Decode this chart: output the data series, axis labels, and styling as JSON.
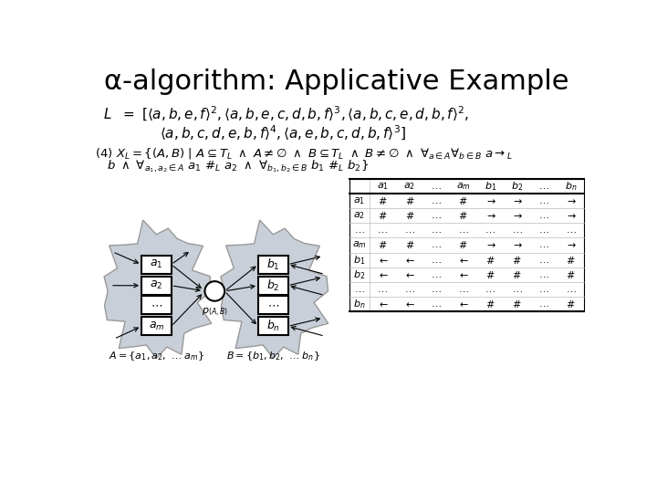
{
  "title": "α-algorithm: Applicative Example",
  "bg_color": "#ffffff",
  "title_fontsize": 22,
  "formula_L_line1": "$L\\ =\\ [\\langle a, b, e, f\\rangle^2, \\langle a, b, e, c, d, b, f\\rangle^3, \\langle a, b, c, e, d, b, f\\rangle^2,$",
  "formula_L_line2": "$\\langle a, b, c, d, e, b, f\\rangle^4, \\langle a, e, b, c, d, b, f\\rangle^3]$",
  "formula_XL1": "$(4)\\ X_L = \\{(A, B)\\ |\\ A \\subseteq T_L\\ \\wedge\\ A \\neq \\emptyset\\ \\wedge\\ B \\subseteq T_L\\ \\wedge\\ B \\neq \\emptyset\\ \\wedge\\ \\forall_{a\\in A}\\forall_{b\\in B}\\ a \\rightarrow_L$",
  "formula_XL2": "$b\\ \\wedge\\ \\forall_{a_1,a_2\\in A}\\ a_1\\ \\#_L\\ a_2\\ \\wedge\\ \\forall_{b_1,b_2\\in B}\\ b_1\\ \\#_L\\ b_2\\}$",
  "blob_color": "#c8cfd8",
  "blob_edge_color": "#999999",
  "box_face": "#ffffff",
  "box_edge": "#000000",
  "place_face": "#ffffff",
  "place_edge": "#000000",
  "table_content": [
    [
      "#",
      "#",
      "...",
      "#",
      "->",
      "->",
      "...",
      "->"
    ],
    [
      "#",
      "#",
      "...",
      "#",
      "->",
      "->",
      "...",
      "->"
    ],
    [
      "...",
      "...",
      "...",
      "...",
      "...",
      "...",
      "...",
      "..."
    ],
    [
      "#",
      "#",
      "...",
      "#",
      "->",
      "->",
      "...",
      "->"
    ],
    [
      "<-",
      "<-",
      "...",
      "<-",
      "#",
      "#",
      "...",
      "#"
    ],
    [
      "<-",
      "<-",
      "...",
      "<-",
      "#",
      "#",
      "...",
      "#"
    ],
    [
      "...",
      "...",
      "...",
      "...",
      "...",
      "...",
      "...",
      "..."
    ],
    [
      "<-",
      "<-",
      "...",
      "<-",
      "#",
      "#",
      "...",
      "#"
    ]
  ],
  "col_headers": [
    "$a_1$",
    "$a_2$",
    "$\\ldots$",
    "$a_m$",
    "$b_1$",
    "$b_2$",
    "$\\ldots$",
    "$b_n$"
  ],
  "row_headers": [
    "$a_1$",
    "$a_2$",
    "$\\ldots$",
    "$a_m$",
    "$b_1$",
    "$b_2$",
    "$\\ldots$",
    "$b_n$"
  ]
}
